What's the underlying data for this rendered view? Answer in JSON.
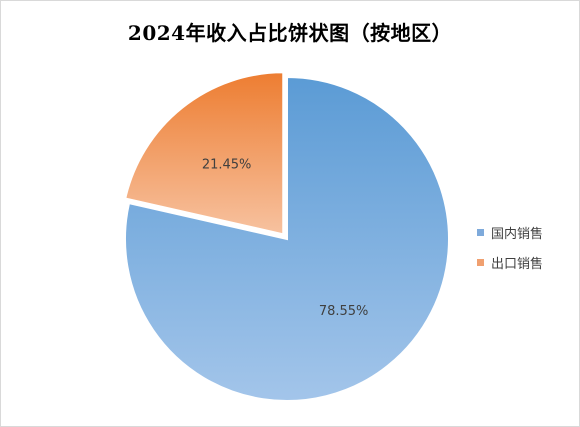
{
  "chart_data": {
    "type": "pie",
    "title": "2024年收入占比饼状图（按地区）",
    "categories": [
      "国内销售",
      "出口销售"
    ],
    "values": [
      78.55,
      21.45
    ],
    "data_labels": [
      "78.55%",
      "21.45%"
    ],
    "colors": [
      "#7eaadb",
      "#f0a070"
    ],
    "legend": "right",
    "exploded_slice": "出口销售"
  }
}
